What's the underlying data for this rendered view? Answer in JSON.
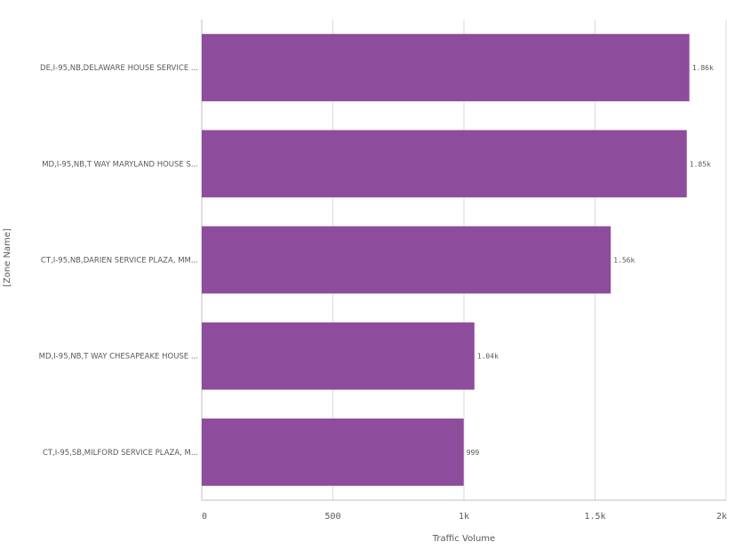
{
  "chart_data": {
    "type": "bar",
    "orientation": "horizontal",
    "categories": [
      "DE,I-95,NB,DELAWARE HOUSE SERVICE ...",
      "MD,I-95,NB,T WAY MARYLAND HOUSE S...",
      "CT,I-95,NB,DARIEN SERVICE PLAZA, MM...",
      "MD,I-95,NB,T WAY CHESAPEAKE HOUSE ...",
      "CT,I-95,SB,MILFORD SERVICE PLAZA, M..."
    ],
    "values": [
      1860,
      1850,
      1560,
      1040,
      999
    ],
    "value_labels": [
      "1.86k",
      "1.85k",
      "1.56k",
      "1.04k",
      "999"
    ],
    "xlabel": "Traffic Volume",
    "ylabel": "[Zone Name]",
    "xlim": [
      0,
      2000
    ],
    "x_ticks": [
      0,
      500,
      1000,
      1500,
      2000
    ],
    "x_tick_labels": [
      "0",
      "500",
      "1k",
      "1.5k",
      "2k"
    ],
    "grid": true,
    "color": "#8e4c9c"
  }
}
